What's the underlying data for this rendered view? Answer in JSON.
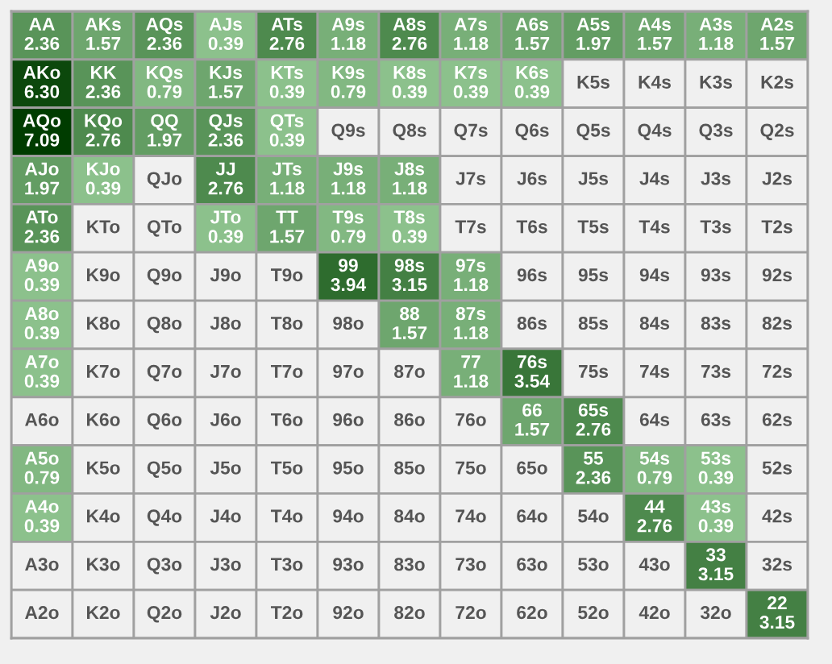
{
  "chart_data": {
    "type": "heatmap",
    "categories": [
      null,
      null,
      null,
      null,
      null,
      null,
      null,
      null,
      null,
      null,
      null,
      null,
      null
    ],
    "y_categories": [
      null,
      null,
      null,
      null,
      null,
      null,
      null,
      null,
      null,
      null,
      null,
      null,
      null
    ],
    "cells": [
      [
        2.36,
        1.57,
        2.36,
        0.39,
        2.76,
        1.18,
        2.76,
        1.18,
        1.57,
        1.97,
        1.57,
        1.18,
        1.57
      ],
      [
        6.3,
        2.36,
        0.79,
        1.57,
        0.39,
        0.79,
        0.39,
        0.39,
        0.39,
        null,
        null,
        null,
        null
      ],
      [
        7.09,
        2.76,
        1.97,
        2.36,
        0.39,
        null,
        null,
        null,
        null,
        null,
        null,
        null,
        null
      ],
      [
        1.97,
        0.39,
        null,
        2.76,
        1.18,
        1.18,
        1.18,
        null,
        null,
        null,
        null,
        null,
        null
      ],
      [
        2.36,
        null,
        null,
        0.39,
        1.57,
        0.79,
        0.39,
        null,
        null,
        null,
        null,
        null,
        null
      ],
      [
        0.39,
        null,
        null,
        null,
        null,
        3.94,
        3.15,
        1.18,
        null,
        null,
        null,
        null,
        null
      ],
      [
        0.39,
        null,
        null,
        null,
        null,
        null,
        1.57,
        1.18,
        null,
        null,
        null,
        null,
        null
      ],
      [
        0.39,
        null,
        null,
        null,
        null,
        null,
        null,
        1.18,
        3.54,
        null,
        null,
        null,
        null
      ],
      [
        null,
        null,
        null,
        null,
        null,
        null,
        null,
        null,
        1.57,
        2.76,
        null,
        null,
        null
      ],
      [
        0.79,
        null,
        null,
        null,
        null,
        null,
        null,
        null,
        null,
        2.36,
        0.79,
        0.39,
        null
      ],
      [
        0.39,
        null,
        null,
        null,
        null,
        null,
        null,
        null,
        null,
        null,
        2.76,
        0.39,
        null
      ],
      [
        null,
        null,
        null,
        null,
        null,
        null,
        null,
        null,
        null,
        null,
        null,
        3.15,
        null
      ],
      [
        null,
        null,
        null,
        null,
        null,
        null,
        null,
        null,
        null,
        null,
        null,
        null,
        3.15
      ]
    ],
    "cell_labels": [
      [
        "2.36",
        "1.57",
        "2.36",
        "0.39",
        "2.76",
        "1.18",
        "2.76",
        "1.18",
        "1.57",
        "1.97",
        "1.57",
        "1.18",
        "1.57"
      ],
      [
        "6.30",
        "2.36",
        "0.79",
        "1.57",
        "0.39",
        "0.79",
        "0.39",
        "0.39",
        "0.39",
        "K5s",
        "K4s",
        "K3s",
        "K2s"
      ],
      [
        "7.09",
        "2.76",
        "1.97",
        "2.36",
        "0.39",
        "Q9s",
        "Q8s",
        "Q7s",
        "Q6s",
        "Q5s",
        "Q4s",
        "Q3s",
        "Q2s"
      ],
      [
        "1.97",
        "0.39",
        "QJo",
        "2.76",
        "1.18",
        "1.18",
        "1.18",
        "J7s",
        "J6s",
        "J5s",
        "J4s",
        "J3s",
        "J2s"
      ],
      [
        "2.36",
        "KTo",
        "QTo",
        "0.39",
        "1.57",
        "0.79",
        "0.39",
        "T7s",
        "T6s",
        "T5s",
        "T4s",
        "T3s",
        "T2s"
      ],
      [
        "0.39",
        "K9o",
        "Q9o",
        "J9o",
        "T9o",
        "3.94",
        "3.15",
        "1.18",
        "96s",
        "95s",
        "94s",
        "93s",
        "92s"
      ],
      [
        "0.39",
        "K8o",
        "Q8o",
        "J8o",
        "T8o",
        "98o",
        "1.57",
        "1.18",
        "86s",
        "85s",
        "84s",
        "83s",
        "82s"
      ],
      [
        "0.39",
        "K7o",
        "Q7o",
        "J7o",
        "T7o",
        "97o",
        "87o",
        "1.18",
        "3.54",
        "75s",
        "74s",
        "73s",
        "72s"
      ],
      [
        "A6o",
        "K6o",
        "Q6o",
        "J6o",
        "T6o",
        "96o",
        "86o",
        "76o",
        "1.57",
        "2.76",
        "64s",
        "63s",
        "62s"
      ],
      [
        "0.79",
        "K5o",
        "Q5o",
        "J5o",
        "T5o",
        "95o",
        "85o",
        "75o",
        "65o",
        "2.36",
        "0.79",
        "0.39",
        "52s"
      ],
      [
        "0.39",
        "K4o",
        "Q4o",
        "J4o",
        "T4o",
        "94o",
        "84o",
        "74o",
        "64o",
        "54o",
        "2.76",
        "0.39",
        "42s"
      ],
      [
        "A3o",
        "K3o",
        "Q3o",
        "J3o",
        "T3o",
        "93o",
        "83o",
        "73o",
        "63o",
        "53o",
        "43o",
        "3.15",
        "32s"
      ],
      [
        "A2o",
        "K2o",
        "Q2o",
        "J2o",
        "T2o",
        "92o",
        "82o",
        "72o",
        "62o",
        "52o",
        "42o",
        "32o",
        "3.15"
      ]
    ],
    "annotations": [
      "AA",
      "AKs",
      "AQs",
      "AJs",
      "ATs",
      "A9s",
      "A8s",
      "A7s",
      "A6s",
      "A5s",
      "A4s",
      "A3s",
      "A2s",
      "AKo",
      "KK",
      "KQs",
      "KJs",
      "KTs",
      "K9s",
      "K8s",
      "K7s",
      "K6s",
      "AQo",
      "KQo",
      "QQ",
      "QJs",
      "QTs",
      "AJo",
      "KJo",
      "JJ",
      "JTs",
      "J9s",
      "J8s",
      "ATo",
      "JTo",
      "TT",
      "T9s",
      "T8s",
      "A9o",
      "99",
      "98s",
      "97s",
      "A8o",
      "88",
      "87s",
      "A7o",
      "77",
      "76s",
      "66",
      "65s",
      "A5o",
      "55",
      "54s",
      "53s",
      "A4o",
      "44",
      "43s",
      "33",
      "22"
    ]
  }
}
